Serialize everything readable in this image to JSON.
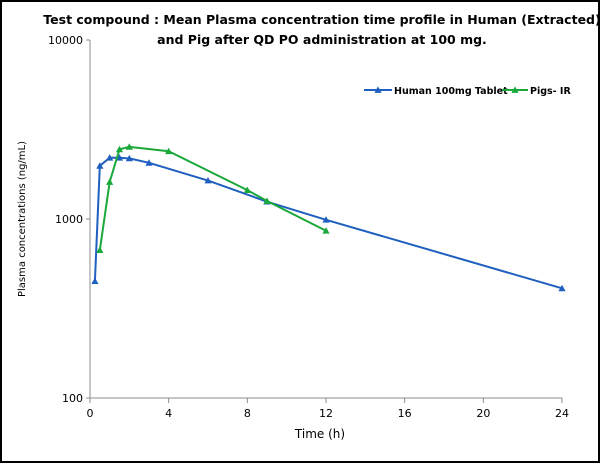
{
  "chart_data": {
    "type": "line",
    "title_lines": [
      "Test compound : Mean Plasma concentration time profile in Human (Extracted)",
      "and Pig after QD PO administration at 100 mg."
    ],
    "xlabel": "Time (h)",
    "ylabel": "Plasma concentrations (ng/mL)",
    "xlim": [
      0,
      24
    ],
    "xticks": [
      0,
      4,
      8,
      12,
      16,
      20,
      24
    ],
    "ylim": [
      100,
      10000
    ],
    "yscale": "log",
    "yticks": [
      100,
      1000,
      10000
    ],
    "grid": false,
    "legend_position": "top-right",
    "series": [
      {
        "name": "Human 100mg Tablet",
        "color": "#1f5fbf",
        "x": [
          0.25,
          0.5,
          1,
          1.5,
          2,
          3,
          6,
          9,
          12,
          24
        ],
        "y": [
          450,
          1980,
          2200,
          2200,
          2180,
          2060,
          1640,
          1250,
          990,
          410
        ]
      },
      {
        "name": "Pigs- IR",
        "color": "#1aa83a",
        "x": [
          0.5,
          1,
          1.5,
          2,
          4,
          8,
          9,
          12
        ],
        "y": [
          670,
          1610,
          2450,
          2530,
          2390,
          1450,
          1260,
          860
        ]
      }
    ]
  }
}
